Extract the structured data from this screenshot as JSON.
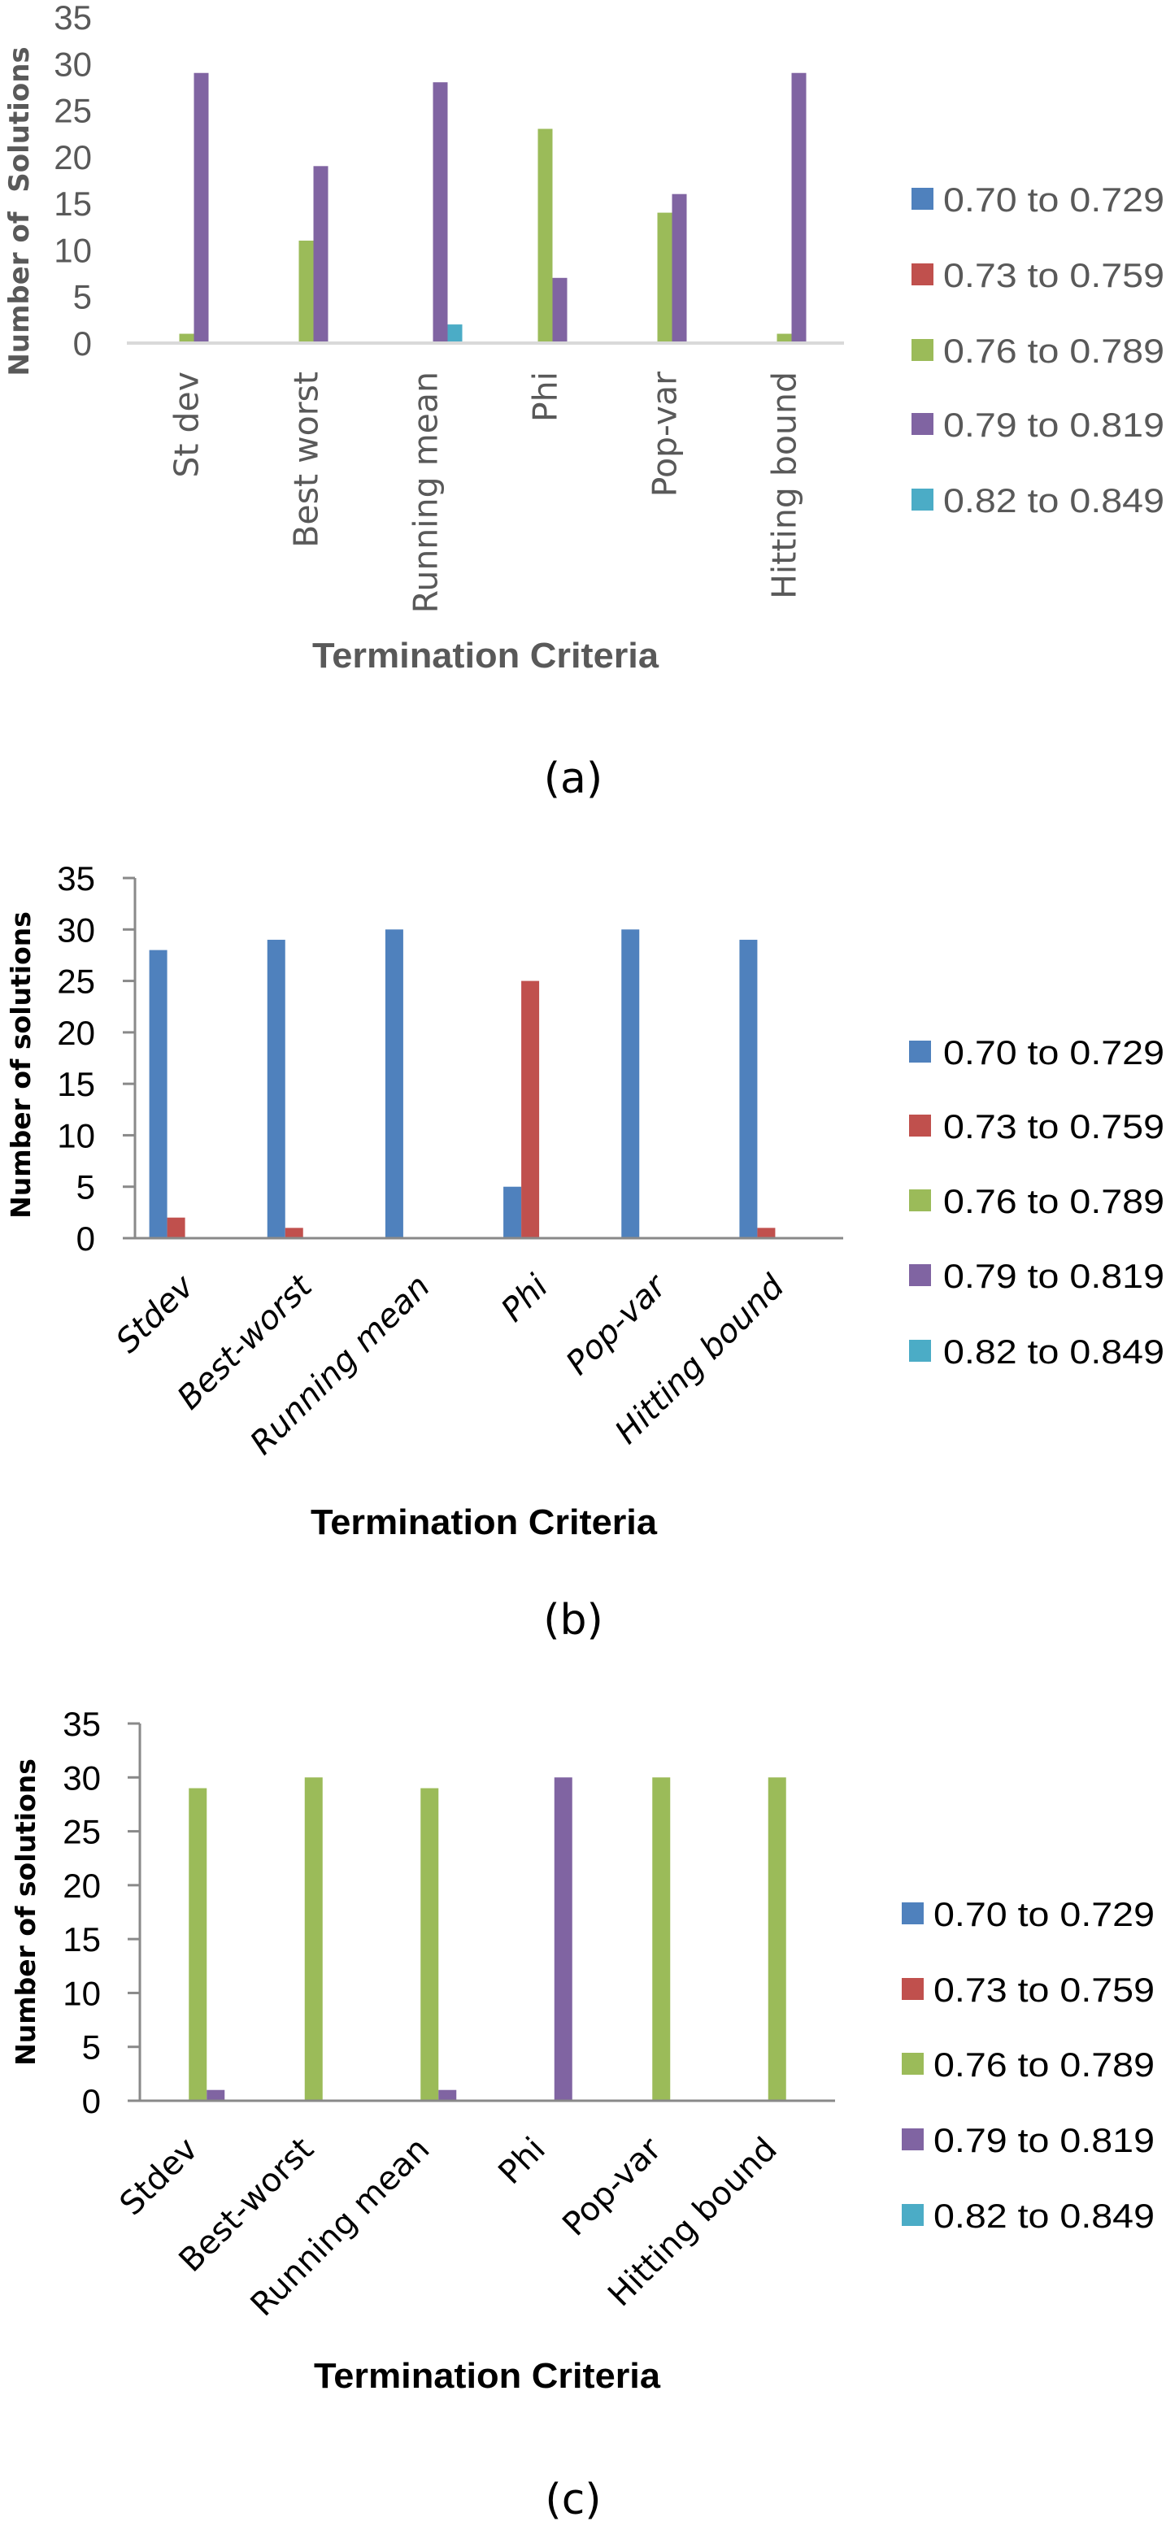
{
  "legend_colors": {
    "0.70 to 0.729": "#4f81bd",
    "0.73 to 0.759": "#c0504d",
    "0.76 to 0.789": "#9bbb59",
    "0.79 to 0.819": "#8064a2",
    "0.82 to 0.849": "#4bacc6"
  },
  "chart_data": [
    {
      "type": "bar",
      "panel_label": "(a)",
      "title": "",
      "xlabel": "Termination Criteria",
      "ylabel": "Number of  Solutions",
      "ylim": [
        0,
        35
      ],
      "yticks": [
        "0",
        "5",
        "10",
        "15",
        "20",
        "25",
        "30",
        "35"
      ],
      "categories": [
        "St dev",
        "Best worst",
        "Running mean",
        "Phi",
        "Pop-var",
        "Hitting bound"
      ],
      "legend_position": "right",
      "series": [
        {
          "name": "0.70 to 0.729",
          "values": [
            0,
            0,
            0,
            0,
            0,
            0
          ]
        },
        {
          "name": "0.73 to 0.759",
          "values": [
            0,
            0,
            0,
            0,
            0,
            0
          ]
        },
        {
          "name": "0.76 to 0.789",
          "values": [
            1,
            11,
            0,
            23,
            14,
            1
          ]
        },
        {
          "name": "0.79 to 0.819",
          "values": [
            29,
            19,
            28,
            7,
            16,
            29
          ]
        },
        {
          "name": "0.82 to 0.849",
          "values": [
            0,
            0,
            2,
            0,
            0,
            0
          ]
        }
      ]
    },
    {
      "type": "bar",
      "panel_label": "(b)",
      "title": "",
      "xlabel": "Termination Criteria",
      "ylabel": "Number of solutions",
      "ylim": [
        0,
        35
      ],
      "yticks": [
        "0",
        "5",
        "10",
        "15",
        "20",
        "25",
        "30",
        "35"
      ],
      "categories": [
        "Stdev",
        "Best-worst",
        "Running mean",
        "Phi",
        "Pop-var",
        "Hitting bound"
      ],
      "legend_position": "right",
      "series": [
        {
          "name": "0.70 to 0.729",
          "values": [
            28,
            29,
            30,
            5,
            30,
            29
          ]
        },
        {
          "name": "0.73 to 0.759",
          "values": [
            2,
            1,
            0,
            25,
            0,
            1
          ]
        },
        {
          "name": "0.76 to 0.789",
          "values": [
            0,
            0,
            0,
            0,
            0,
            0
          ]
        },
        {
          "name": "0.79 to 0.819",
          "values": [
            0,
            0,
            0,
            0,
            0,
            0
          ]
        },
        {
          "name": "0.82 to 0.849",
          "values": [
            0,
            0,
            0,
            0,
            0,
            0
          ]
        }
      ]
    },
    {
      "type": "bar",
      "panel_label": "(c)",
      "title": "",
      "xlabel": "Termination Criteria",
      "ylabel": "Number of solutions",
      "ylim": [
        0,
        35
      ],
      "yticks": [
        "0",
        "5",
        "10",
        "15",
        "20",
        "25",
        "30",
        "35"
      ],
      "categories": [
        "Stdev",
        "Best-worst",
        "Running mean",
        "Phi",
        "Pop-var",
        "Hitting bound"
      ],
      "legend_position": "right",
      "series": [
        {
          "name": "0.70 to 0.729",
          "values": [
            0,
            0,
            0,
            0,
            0,
            0
          ]
        },
        {
          "name": "0.73 to 0.759",
          "values": [
            0,
            0,
            0,
            0,
            0,
            0
          ]
        },
        {
          "name": "0.76 to 0.789",
          "values": [
            29,
            30,
            29,
            0,
            30,
            30
          ]
        },
        {
          "name": "0.79 to 0.819",
          "values": [
            1,
            0,
            1,
            30,
            0,
            0
          ]
        },
        {
          "name": "0.82 to 0.849",
          "values": [
            0,
            0,
            0,
            0,
            0,
            0
          ]
        }
      ]
    }
  ]
}
